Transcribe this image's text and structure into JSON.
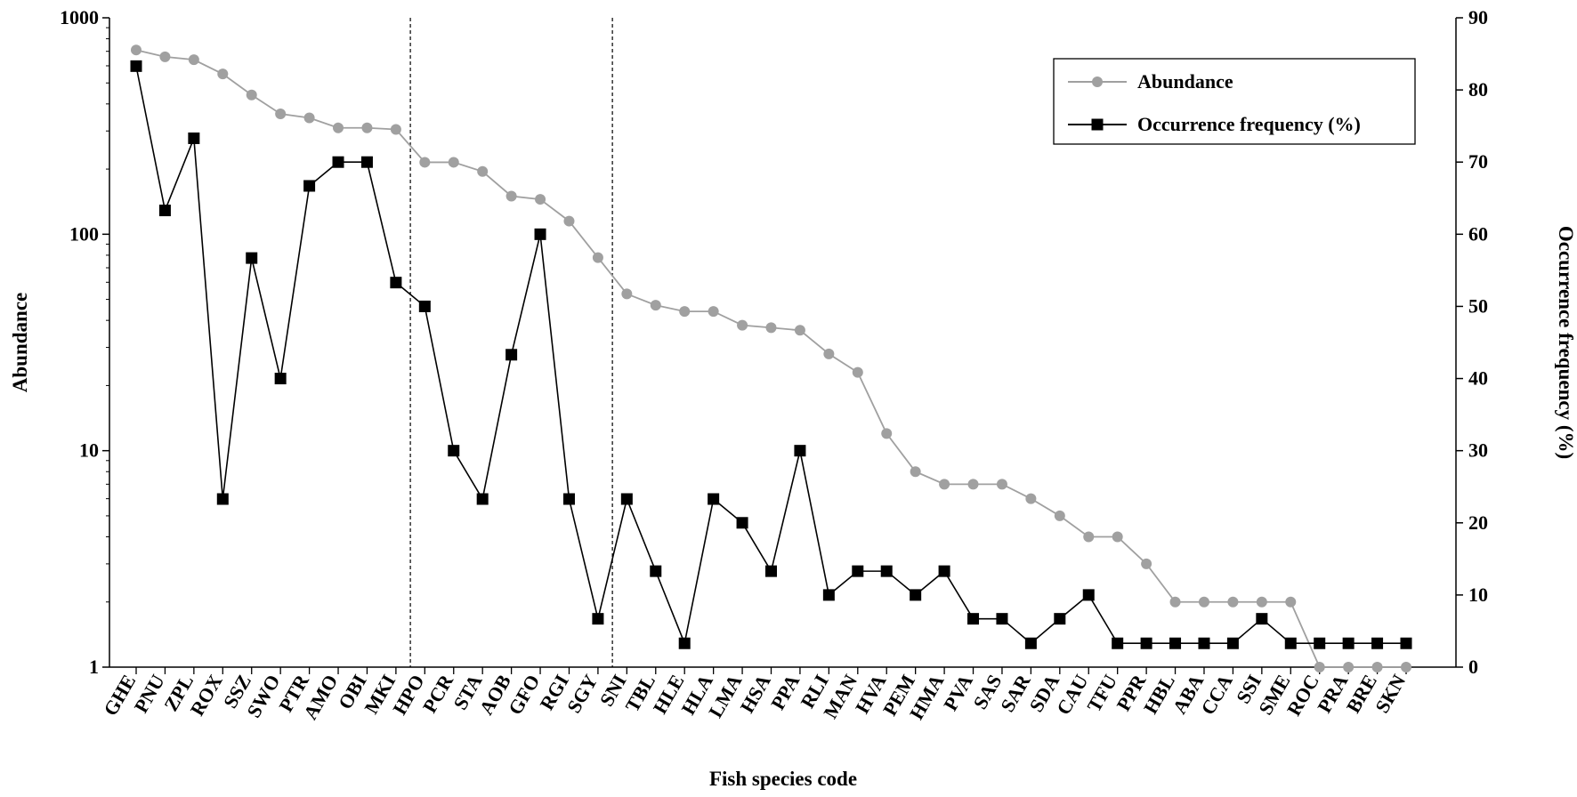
{
  "chart_data": {
    "type": "line",
    "xlabel": "Fish species code",
    "ylabel": "Abundance",
    "y2label": "Occurrence frequency (%)",
    "y_scale": "log",
    "ylim": [
      1,
      1000
    ],
    "y_ticks": [
      "1",
      "10",
      "100",
      "1000"
    ],
    "y2lim": [
      0,
      90
    ],
    "y2_ticks": [
      "0",
      "10",
      "20",
      "30",
      "40",
      "50",
      "60",
      "70",
      "80",
      "90"
    ],
    "grid": false,
    "legend_position": "top-right",
    "group_separators_after": [
      "MKI",
      "SGY"
    ],
    "categories": [
      "GHE",
      "PNU",
      "ZPL",
      "ROX",
      "SSZ",
      "SWO",
      "PTR",
      "AMO",
      "OBI",
      "MKI",
      "HPO",
      "PCR",
      "STA",
      "AOB",
      "GFO",
      "RGI",
      "SGY",
      "SNI",
      "TBL",
      "HLE",
      "HLA",
      "LMA",
      "HSA",
      "PPA",
      "RLI",
      "MAN",
      "HVA",
      "PEM",
      "HMA",
      "PVA",
      "SAS",
      "SAR",
      "SDA",
      "CAU",
      "TFU",
      "PPR",
      "HBL",
      "ABA",
      "CCA",
      "SSI",
      "SME",
      "ROC",
      "PRA",
      "BRE",
      "SKN"
    ],
    "series": [
      {
        "name": "Abundance",
        "axis": "left",
        "color": "#a0a0a0",
        "marker": "circle",
        "values": [
          710,
          660,
          640,
          550,
          440,
          360,
          345,
          310,
          310,
          305,
          215,
          215,
          195,
          150,
          145,
          115,
          78,
          53,
          47,
          44,
          44,
          38,
          37,
          36,
          28,
          23,
          12,
          8,
          7,
          7,
          7,
          6,
          5,
          4,
          4,
          3,
          2,
          2,
          2,
          2,
          2,
          1,
          1,
          1,
          1
        ]
      },
      {
        "name": "Occurrence frequency (%)",
        "axis": "right",
        "color": "#000000",
        "marker": "square",
        "values": [
          83.3,
          63.3,
          73.3,
          23.3,
          56.7,
          40,
          66.7,
          70,
          70,
          53.3,
          50,
          30,
          23.3,
          43.3,
          60,
          23.3,
          6.7,
          23.3,
          13.3,
          3.3,
          23.3,
          20,
          13.3,
          30,
          10,
          13.3,
          13.3,
          10,
          13.3,
          6.7,
          6.7,
          3.3,
          6.7,
          10,
          3.3,
          3.3,
          3.3,
          3.3,
          3.3,
          6.7,
          3.3,
          3.3,
          3.3,
          3.3,
          3.3
        ]
      }
    ]
  }
}
